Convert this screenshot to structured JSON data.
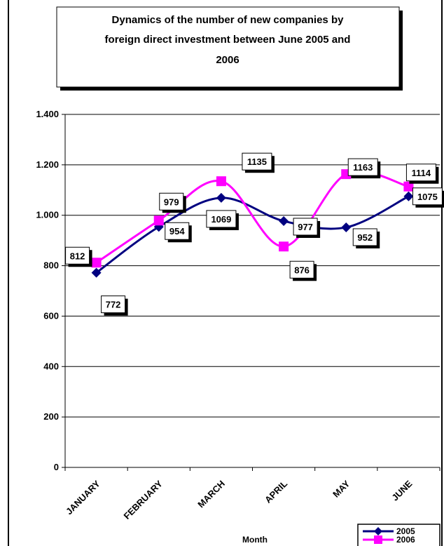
{
  "chart_data": {
    "type": "line",
    "title": "Dynamics of the number of new companies by foreign direct investment between June 2005 and 2006",
    "title_lines": [
      "Dynamics of the number of new companies by",
      "foreign direct investment between June 2005 and",
      "2006"
    ],
    "xlabel": "Month",
    "ylabel": "",
    "categories": [
      "JANUARY",
      "FEBRUARY",
      "MARCH",
      "APRIL",
      "MAY",
      "JUNE"
    ],
    "ylim": [
      0,
      1400
    ],
    "yticks": [
      0,
      200,
      400,
      600,
      800,
      1000,
      1200,
      1400
    ],
    "ytick_labels": [
      "0",
      "200",
      "400",
      "600",
      "800",
      "1.000",
      "1.200",
      "1.400"
    ],
    "grid": true,
    "smooth": true,
    "legend_position": "bottom-right",
    "series": [
      {
        "name": "2005",
        "values": [
          772,
          954,
          1069,
          977,
          952,
          1075
        ],
        "color": "#000080",
        "marker": "diamond",
        "value_labels": [
          "772",
          "954",
          "1069",
          "977",
          "952",
          "1075"
        ]
      },
      {
        "name": "2006",
        "values": [
          812,
          979,
          1135,
          876,
          1163,
          1114
        ],
        "color": "#ff00ff",
        "marker": "square",
        "value_labels": [
          "812",
          "979",
          "1135",
          "876",
          "1163",
          "1114"
        ]
      }
    ]
  }
}
